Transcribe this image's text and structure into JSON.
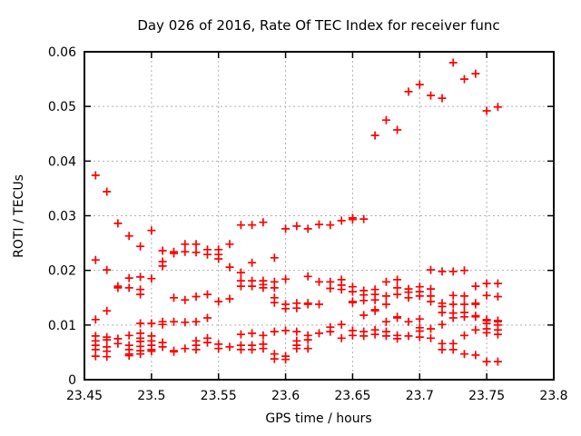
{
  "chart_data": {
    "type": "scatter",
    "title": "Day 026 of 2016, Rate Of TEC Index for receiver func",
    "xlabel": "GPS time / hours",
    "ylabel": "ROTI / TECUs",
    "xlim": [
      23.45,
      23.8
    ],
    "ylim": [
      0,
      0.06
    ],
    "x_ticks": [
      23.45,
      23.5,
      23.55,
      23.6,
      23.65,
      23.7,
      23.75,
      23.8
    ],
    "x_tick_labels": [
      "23.45",
      "23.5",
      "23.55",
      "23.6",
      "23.65",
      "23.7",
      "23.75",
      "23.8"
    ],
    "y_ticks": [
      0,
      0.01,
      0.02,
      0.03,
      0.04,
      0.05,
      0.06
    ],
    "y_tick_labels": [
      "0",
      "0.01",
      "0.02",
      "0.03",
      "0.04",
      "0.05",
      "0.06"
    ],
    "grid": true,
    "legend": false,
    "marker": "plus",
    "marker_color": "#ff0000",
    "grid_color": "#b0b0b0",
    "axis_color": "#000000",
    "background_color": "#ffffff",
    "points": [
      [
        23.4583,
        0.0374
      ],
      [
        23.4583,
        0.0219
      ],
      [
        23.4583,
        0.011
      ],
      [
        23.4583,
        0.008
      ],
      [
        23.4583,
        0.0071
      ],
      [
        23.4583,
        0.0063
      ],
      [
        23.4583,
        0.0055
      ],
      [
        23.4583,
        0.0043
      ],
      [
        23.4667,
        0.0344
      ],
      [
        23.4667,
        0.0201
      ],
      [
        23.4667,
        0.0126
      ],
      [
        23.4667,
        0.0078
      ],
      [
        23.4667,
        0.0073
      ],
      [
        23.4667,
        0.006
      ],
      [
        23.4667,
        0.0052
      ],
      [
        23.4667,
        0.0042
      ],
      [
        23.475,
        0.0286
      ],
      [
        23.475,
        0.0171
      ],
      [
        23.475,
        0.0168
      ],
      [
        23.475,
        0.0075
      ],
      [
        23.475,
        0.0066
      ],
      [
        23.4833,
        0.0263
      ],
      [
        23.4833,
        0.0186
      ],
      [
        23.4833,
        0.0168
      ],
      [
        23.4833,
        0.0081
      ],
      [
        23.4833,
        0.0063
      ],
      [
        23.4833,
        0.0055
      ],
      [
        23.4833,
        0.0047
      ],
      [
        23.4833,
        0.0044
      ],
      [
        23.4917,
        0.0244
      ],
      [
        23.4917,
        0.0188
      ],
      [
        23.4917,
        0.0165
      ],
      [
        23.4917,
        0.0156
      ],
      [
        23.4917,
        0.0103
      ],
      [
        23.4917,
        0.0085
      ],
      [
        23.4917,
        0.0076
      ],
      [
        23.4917,
        0.007
      ],
      [
        23.4917,
        0.0061
      ],
      [
        23.4917,
        0.0053
      ],
      [
        23.4917,
        0.0047
      ],
      [
        23.5,
        0.0273
      ],
      [
        23.5,
        0.0185
      ],
      [
        23.5,
        0.0103
      ],
      [
        23.5,
        0.008
      ],
      [
        23.5,
        0.0071
      ],
      [
        23.5,
        0.0063
      ],
      [
        23.5,
        0.0055
      ],
      [
        23.5,
        0.0052
      ],
      [
        23.5083,
        0.0236
      ],
      [
        23.5083,
        0.0216
      ],
      [
        23.5083,
        0.0208
      ],
      [
        23.5083,
        0.0106
      ],
      [
        23.5083,
        0.0101
      ],
      [
        23.5083,
        0.0068
      ],
      [
        23.5083,
        0.006
      ],
      [
        23.5167,
        0.0234
      ],
      [
        23.5167,
        0.0231
      ],
      [
        23.5167,
        0.015
      ],
      [
        23.5167,
        0.0106
      ],
      [
        23.5167,
        0.0053
      ],
      [
        23.5167,
        0.0051
      ],
      [
        23.525,
        0.0248
      ],
      [
        23.525,
        0.0234
      ],
      [
        23.525,
        0.0146
      ],
      [
        23.525,
        0.0105
      ],
      [
        23.525,
        0.0057
      ],
      [
        23.5333,
        0.0248
      ],
      [
        23.5333,
        0.0233
      ],
      [
        23.5333,
        0.0152
      ],
      [
        23.5333,
        0.0106
      ],
      [
        23.5333,
        0.0071
      ],
      [
        23.5333,
        0.0063
      ],
      [
        23.5333,
        0.0055
      ],
      [
        23.5417,
        0.0238
      ],
      [
        23.5417,
        0.0229
      ],
      [
        23.5417,
        0.0156
      ],
      [
        23.5417,
        0.0113
      ],
      [
        23.5417,
        0.0076
      ],
      [
        23.5417,
        0.0068
      ],
      [
        23.55,
        0.0238
      ],
      [
        23.55,
        0.0229
      ],
      [
        23.55,
        0.0221
      ],
      [
        23.55,
        0.0143
      ],
      [
        23.55,
        0.0065
      ],
      [
        23.55,
        0.0057
      ],
      [
        23.5583,
        0.0248
      ],
      [
        23.5583,
        0.0206
      ],
      [
        23.5583,
        0.0148
      ],
      [
        23.5583,
        0.006
      ],
      [
        23.5667,
        0.0283
      ],
      [
        23.5667,
        0.0196
      ],
      [
        23.5667,
        0.0181
      ],
      [
        23.5667,
        0.0171
      ],
      [
        23.5667,
        0.0083
      ],
      [
        23.5667,
        0.0063
      ],
      [
        23.5667,
        0.0055
      ],
      [
        23.575,
        0.0283
      ],
      [
        23.575,
        0.0214
      ],
      [
        23.575,
        0.0181
      ],
      [
        23.575,
        0.0171
      ],
      [
        23.575,
        0.0085
      ],
      [
        23.575,
        0.0063
      ],
      [
        23.575,
        0.0055
      ],
      [
        23.5833,
        0.0288
      ],
      [
        23.5833,
        0.0181
      ],
      [
        23.5833,
        0.0174
      ],
      [
        23.5833,
        0.0168
      ],
      [
        23.5833,
        0.0081
      ],
      [
        23.5833,
        0.0065
      ],
      [
        23.5833,
        0.0057
      ],
      [
        23.5917,
        0.0223
      ],
      [
        23.5917,
        0.0179
      ],
      [
        23.5917,
        0.0168
      ],
      [
        23.5917,
        0.015
      ],
      [
        23.5917,
        0.0141
      ],
      [
        23.5917,
        0.0088
      ],
      [
        23.5917,
        0.0047
      ],
      [
        23.5917,
        0.0038
      ],
      [
        23.6,
        0.0276
      ],
      [
        23.6,
        0.0184
      ],
      [
        23.6,
        0.0138
      ],
      [
        23.6,
        0.013
      ],
      [
        23.6,
        0.009
      ],
      [
        23.6,
        0.0043
      ],
      [
        23.6,
        0.0037
      ],
      [
        23.6083,
        0.0281
      ],
      [
        23.6083,
        0.014
      ],
      [
        23.6083,
        0.0131
      ],
      [
        23.6083,
        0.0088
      ],
      [
        23.6083,
        0.0071
      ],
      [
        23.6083,
        0.0063
      ],
      [
        23.6083,
        0.0057
      ],
      [
        23.6167,
        0.0276
      ],
      [
        23.6167,
        0.0189
      ],
      [
        23.6167,
        0.014
      ],
      [
        23.6167,
        0.0138
      ],
      [
        23.6167,
        0.0081
      ],
      [
        23.6167,
        0.0073
      ],
      [
        23.6167,
        0.0057
      ],
      [
        23.625,
        0.0284
      ],
      [
        23.625,
        0.0179
      ],
      [
        23.625,
        0.0138
      ],
      [
        23.625,
        0.0085
      ],
      [
        23.6333,
        0.0283
      ],
      [
        23.6333,
        0.0179
      ],
      [
        23.6333,
        0.0167
      ],
      [
        23.6333,
        0.0096
      ],
      [
        23.6333,
        0.0088
      ],
      [
        23.6417,
        0.0291
      ],
      [
        23.6417,
        0.0183
      ],
      [
        23.6417,
        0.0173
      ],
      [
        23.6417,
        0.0165
      ],
      [
        23.6417,
        0.0101
      ],
      [
        23.6417,
        0.0076
      ],
      [
        23.65,
        0.0296
      ],
      [
        23.65,
        0.0293
      ],
      [
        23.65,
        0.017
      ],
      [
        23.65,
        0.0161
      ],
      [
        23.65,
        0.0143
      ],
      [
        23.65,
        0.0141
      ],
      [
        23.65,
        0.009
      ],
      [
        23.65,
        0.0081
      ],
      [
        23.6583,
        0.0294
      ],
      [
        23.6583,
        0.0163
      ],
      [
        23.6583,
        0.0155
      ],
      [
        23.6583,
        0.0145
      ],
      [
        23.6583,
        0.0118
      ],
      [
        23.6583,
        0.0088
      ],
      [
        23.6583,
        0.008
      ],
      [
        23.6667,
        0.0447
      ],
      [
        23.6667,
        0.0165
      ],
      [
        23.6667,
        0.0156
      ],
      [
        23.6667,
        0.0146
      ],
      [
        23.6667,
        0.0128
      ],
      [
        23.6667,
        0.0126
      ],
      [
        23.6667,
        0.0091
      ],
      [
        23.6667,
        0.0083
      ],
      [
        23.675,
        0.0475
      ],
      [
        23.675,
        0.0179
      ],
      [
        23.675,
        0.0153
      ],
      [
        23.675,
        0.0138
      ],
      [
        23.675,
        0.0106
      ],
      [
        23.675,
        0.0088
      ],
      [
        23.675,
        0.008
      ],
      [
        23.6833,
        0.0457
      ],
      [
        23.6833,
        0.0183
      ],
      [
        23.6833,
        0.0168
      ],
      [
        23.6833,
        0.0156
      ],
      [
        23.6833,
        0.0115
      ],
      [
        23.6833,
        0.0113
      ],
      [
        23.6833,
        0.0081
      ],
      [
        23.6833,
        0.0075
      ],
      [
        23.6917,
        0.0527
      ],
      [
        23.6917,
        0.0166
      ],
      [
        23.6917,
        0.016
      ],
      [
        23.6917,
        0.015
      ],
      [
        23.6917,
        0.0106
      ],
      [
        23.6917,
        0.008
      ],
      [
        23.7,
        0.054
      ],
      [
        23.7,
        0.017
      ],
      [
        23.7,
        0.0161
      ],
      [
        23.7,
        0.0153
      ],
      [
        23.7,
        0.0111
      ],
      [
        23.7,
        0.0095
      ],
      [
        23.7,
        0.0089
      ],
      [
        23.7,
        0.0078
      ],
      [
        23.7083,
        0.052
      ],
      [
        23.7083,
        0.0201
      ],
      [
        23.7083,
        0.0166
      ],
      [
        23.7083,
        0.0153
      ],
      [
        23.7083,
        0.0143
      ],
      [
        23.7083,
        0.0093
      ],
      [
        23.7083,
        0.0076
      ],
      [
        23.7167,
        0.0515
      ],
      [
        23.7167,
        0.0198
      ],
      [
        23.7167,
        0.014
      ],
      [
        23.7167,
        0.0134
      ],
      [
        23.7167,
        0.0123
      ],
      [
        23.7167,
        0.0101
      ],
      [
        23.7167,
        0.0066
      ],
      [
        23.7167,
        0.0055
      ],
      [
        23.725,
        0.058
      ],
      [
        23.725,
        0.0198
      ],
      [
        23.725,
        0.0154
      ],
      [
        23.725,
        0.0138
      ],
      [
        23.725,
        0.0122
      ],
      [
        23.725,
        0.0113
      ],
      [
        23.725,
        0.0066
      ],
      [
        23.725,
        0.0055
      ],
      [
        23.7333,
        0.055
      ],
      [
        23.7333,
        0.02
      ],
      [
        23.7333,
        0.0153
      ],
      [
        23.7333,
        0.0138
      ],
      [
        23.7333,
        0.0123
      ],
      [
        23.7333,
        0.0115
      ],
      [
        23.7333,
        0.0081
      ],
      [
        23.7333,
        0.0047
      ],
      [
        23.7417,
        0.056
      ],
      [
        23.7417,
        0.0171
      ],
      [
        23.7417,
        0.014
      ],
      [
        23.7417,
        0.0138
      ],
      [
        23.7417,
        0.0117
      ],
      [
        23.7417,
        0.0115
      ],
      [
        23.7417,
        0.0091
      ],
      [
        23.7417,
        0.0045
      ],
      [
        23.75,
        0.0492
      ],
      [
        23.75,
        0.0176
      ],
      [
        23.75,
        0.0154
      ],
      [
        23.75,
        0.011
      ],
      [
        23.75,
        0.0108
      ],
      [
        23.75,
        0.0103
      ],
      [
        23.75,
        0.0093
      ],
      [
        23.75,
        0.0086
      ],
      [
        23.75,
        0.0033
      ],
      [
        23.7583,
        0.0499
      ],
      [
        23.7583,
        0.0176
      ],
      [
        23.7583,
        0.0152
      ],
      [
        23.7583,
        0.0108
      ],
      [
        23.7583,
        0.0106
      ],
      [
        23.7583,
        0.01
      ],
      [
        23.7583,
        0.0091
      ],
      [
        23.7583,
        0.0083
      ],
      [
        23.7583,
        0.0033
      ]
    ]
  }
}
